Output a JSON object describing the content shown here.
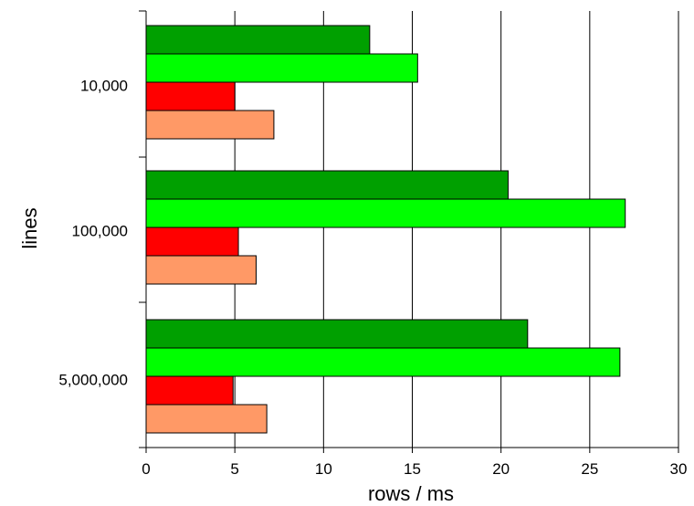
{
  "chart_data": {
    "type": "bar",
    "orientation": "horizontal",
    "title": "",
    "xlabel": "rows / ms",
    "ylabel": "lines",
    "categories": [
      "10,000",
      "100,000",
      "5,000,000"
    ],
    "xlim": [
      0,
      30
    ],
    "xticks": [
      "0",
      "5",
      "10",
      "15",
      "20",
      "25",
      "30"
    ],
    "grid": "vertical",
    "legend": "none",
    "series": [
      {
        "color": "#00a000",
        "values": [
          12.6,
          20.4,
          21.5
        ]
      },
      {
        "color": "#00ff00",
        "values": [
          15.3,
          27.0,
          26.7
        ]
      },
      {
        "color": "#ff0000",
        "values": [
          5.0,
          5.2,
          4.9
        ]
      },
      {
        "color": "#ff9966",
        "values": [
          7.2,
          6.2,
          6.8
        ]
      }
    ]
  }
}
